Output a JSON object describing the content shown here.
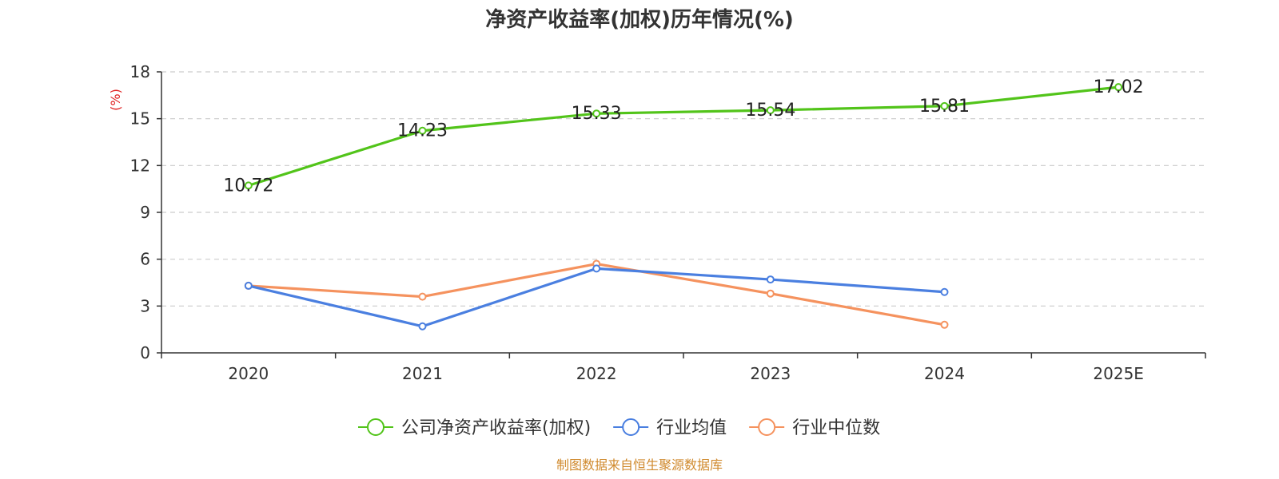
{
  "chart_data": {
    "type": "line",
    "title": "净资产收益率(加权)历年情况(%)",
    "ylabel": "(%)",
    "xlabel": "",
    "categories": [
      "2020",
      "2021",
      "2022",
      "2023",
      "2024",
      "2025E"
    ],
    "ylim": [
      0,
      18
    ],
    "yticks": [
      0,
      3,
      6,
      9,
      12,
      15,
      18
    ],
    "grid": true,
    "legend_position": "bottom",
    "series": [
      {
        "name": "公司净资产收益率(加权)",
        "color": "#52c41a",
        "values": [
          10.72,
          14.23,
          15.33,
          15.54,
          15.81,
          17.02
        ],
        "labels": [
          "10.72",
          "14.23",
          "15.33",
          "15.54",
          "15.81",
          "17.02"
        ]
      },
      {
        "name": "行业均值",
        "color": "#4a7fe0",
        "values": [
          4.3,
          1.7,
          5.4,
          4.7,
          3.9,
          null
        ]
      },
      {
        "name": "行业中位数",
        "color": "#f5925e",
        "values": [
          4.3,
          3.6,
          5.7,
          3.8,
          1.8,
          null
        ]
      }
    ]
  },
  "source": "制图数据来自恒生聚源数据库"
}
